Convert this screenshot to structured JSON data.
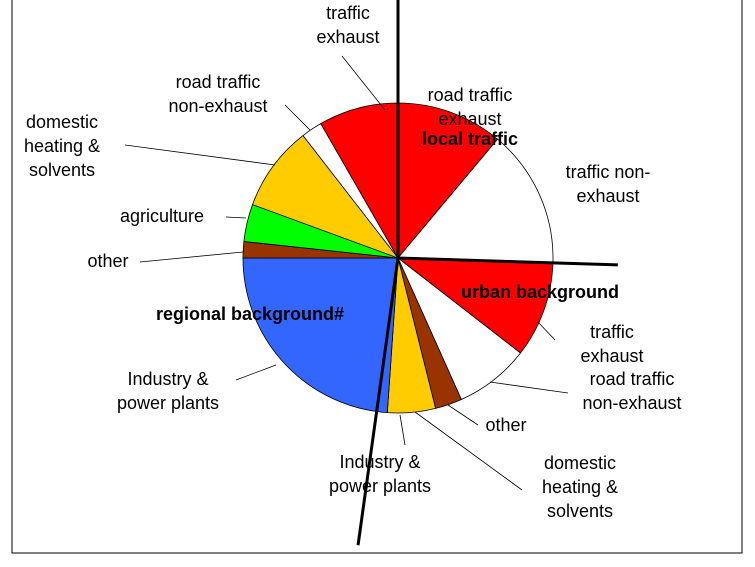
{
  "chart_data": {
    "type": "pie",
    "series": [
      {
        "name": "local traffic",
        "labels": [
          "road traffic\nexhaust",
          "traffic non-\nexhaust"
        ],
        "values": [
          11.1,
          14.4
        ],
        "colors": [
          "#ff0000",
          "#ffffff"
        ]
      },
      {
        "name": "urban background",
        "labels": [
          "traffic\nexhaust",
          "road traffic\nnon-exhaust",
          "other",
          "domestic\nheating &\nsolvents",
          "Industry &\npower plants"
        ],
        "values": [
          10.0,
          7.8,
          2.8,
          5.0,
          1.1
        ],
        "colors": [
          "#ff0000",
          "#ffffff",
          "#993300",
          "#ffcc00",
          "#3366ff"
        ]
      },
      {
        "name": "regional background#",
        "labels": [
          "Industry &\npower plants",
          "other",
          "agriculture",
          "domestic\nheating &\nsolvents",
          "road traffic\nnon-exhaust",
          "traffic\nexhaust"
        ],
        "values": [
          22.8,
          1.7,
          3.9,
          8.9,
          2.2,
          8.3
        ],
        "colors": [
          "#3366ff",
          "#993300",
          "#00ff00",
          "#ffcc00",
          "#ffffff",
          "#ff0000"
        ]
      }
    ]
  }
}
